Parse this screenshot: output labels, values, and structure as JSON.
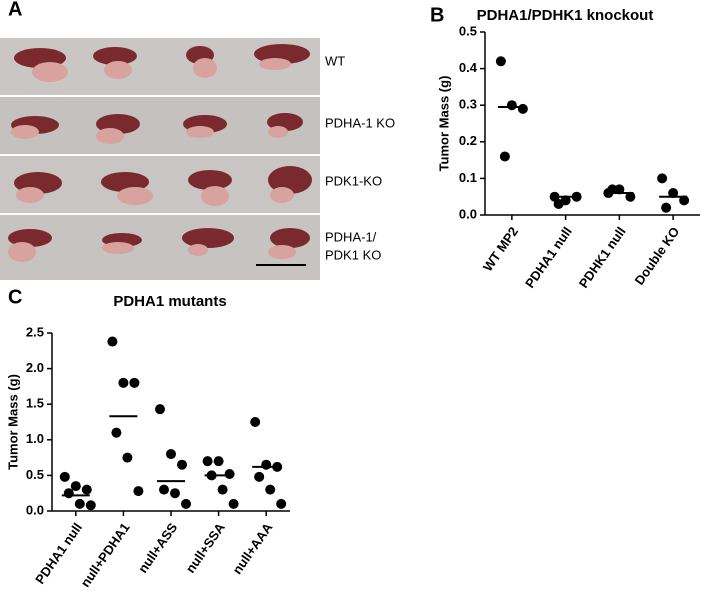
{
  "figure": {
    "panel_a": {
      "letter": "A",
      "rows": [
        "WT",
        "PDHA-1 KO",
        "PDK1-KO",
        "PDHA-1/",
        "PDK1 KO"
      ]
    }
  },
  "chart_data": [
    {
      "type": "dotplot",
      "panel": "B",
      "title": "PDHA1/PDHK1 knockout",
      "ylabel": "Tumor Mass (g)",
      "categories": [
        "WT MP2",
        "PDHA1 null",
        "PDHK1 null",
        "Double KO"
      ],
      "values": [
        [
          0.42,
          0.3,
          0.29,
          0.16
        ],
        [
          0.05,
          0.04,
          0.05,
          0.03
        ],
        [
          0.06,
          0.07,
          0.05,
          0.07
        ],
        [
          0.1,
          0.06,
          0.04,
          0.02
        ]
      ],
      "means": [
        0.295,
        0.05,
        0.06,
        0.05
      ],
      "color": "#000000",
      "ylim": [
        0,
        0.5
      ],
      "yticks": [
        {
          "value": 0,
          "label": "0.0"
        },
        0.1,
        0.2,
        0.3,
        0.4,
        0.5
      ]
    },
    {
      "type": "dotplot",
      "panel": "C",
      "title": "PDHA1 mutants",
      "ylabel": "Tumor Mass (g)",
      "categories": [
        "PDHA1 null",
        "null+PDHA1",
        "null+ASS",
        "null+SSA",
        "null+AAA"
      ],
      "values": [
        [
          0.48,
          0.35,
          0.3,
          0.25,
          0.1,
          0.08
        ],
        [
          2.38,
          1.8,
          1.8,
          1.1,
          0.75,
          0.28
        ],
        [
          1.43,
          0.8,
          0.65,
          0.3,
          0.25,
          0.1
        ],
        [
          0.7,
          0.7,
          0.52,
          0.5,
          0.3,
          0.1
        ],
        [
          1.25,
          0.65,
          0.62,
          0.48,
          0.3,
          0.1
        ]
      ],
      "means": [
        0.22,
        1.33,
        0.42,
        0.5,
        0.62
      ],
      "color": "#000000",
      "ylim": [
        0,
        2.5
      ],
      "yticks": [
        {
          "value": 0,
          "label": "0.0"
        },
        0.5,
        {
          "value": 1,
          "label": "1.0"
        },
        1.5,
        {
          "value": 2,
          "label": "2.0"
        },
        2.5
      ]
    }
  ]
}
